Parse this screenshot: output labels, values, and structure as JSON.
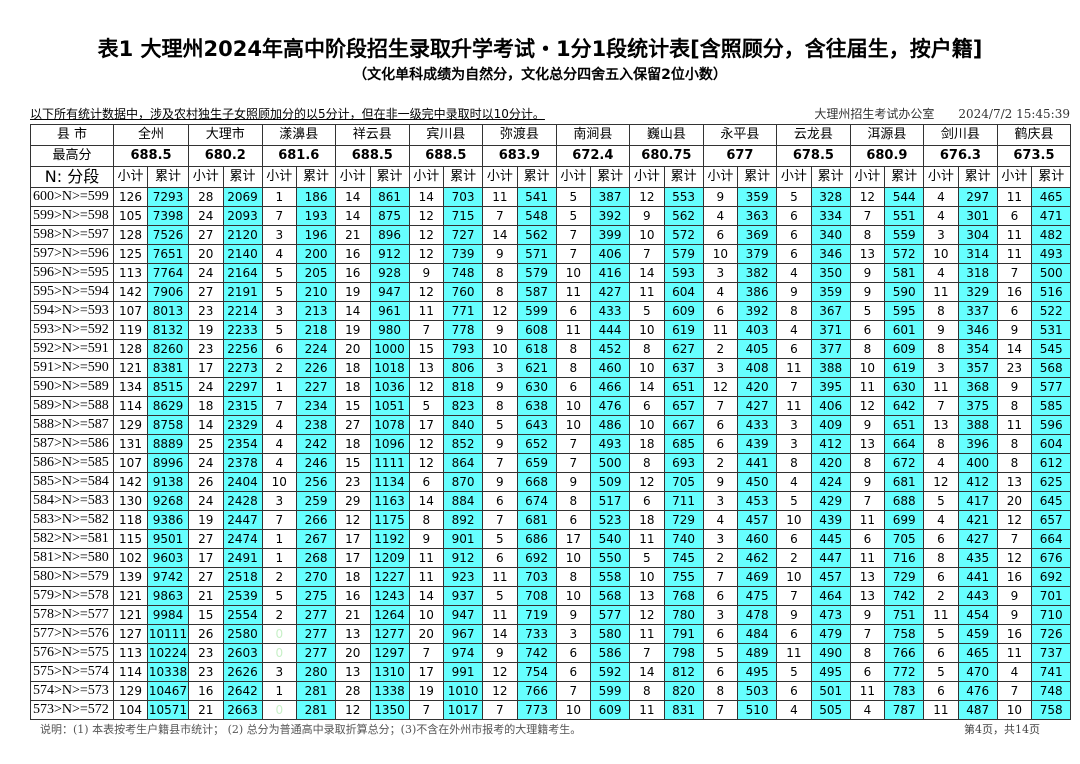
{
  "title": "表1  大理州2024年高中阶段招生录取升学考试・1分1段统计表[含照顾分，含往届生，按户籍]",
  "subtitle": "（文化单科成绩为自然分，文化总分四舍五入保留2位小数）",
  "note": "以下所有统计数据中，涉及农村独生子女照顾加分的以5分计，但在非一级完中录取时以10分计。",
  "office": "大理州招生考试办公室",
  "timestamp": "2024/7/2 15:45:39",
  "header": {
    "region_label": "县 市",
    "max_label": "最高分",
    "segment_label": "N: 分段",
    "sub_label": "小计",
    "cum_label": "累计"
  },
  "regions": [
    "全州",
    "大理市",
    "漾濞县",
    "祥云县",
    "宾川县",
    "弥渡县",
    "南涧县",
    "巍山县",
    "永平县",
    "云龙县",
    "洱源县",
    "剑川县",
    "鹤庆县"
  ],
  "max_scores": [
    "688.5",
    "680.2",
    "681.6",
    "688.5",
    "688.5",
    "683.9",
    "672.4",
    "680.75",
    "677",
    "678.5",
    "680.9",
    "676.3",
    "673.5"
  ],
  "rows": [
    [
      "600>N>=599",
      126,
      7293,
      28,
      2069,
      1,
      186,
      14,
      861,
      14,
      703,
      11,
      541,
      5,
      387,
      12,
      553,
      9,
      359,
      5,
      328,
      12,
      544,
      4,
      297,
      11,
      465
    ],
    [
      "599>N>=598",
      105,
      7398,
      24,
      2093,
      7,
      193,
      14,
      875,
      12,
      715,
      7,
      548,
      5,
      392,
      9,
      562,
      4,
      363,
      6,
      334,
      7,
      551,
      4,
      301,
      6,
      471
    ],
    [
      "598>N>=597",
      128,
      7526,
      27,
      2120,
      3,
      196,
      21,
      896,
      12,
      727,
      14,
      562,
      7,
      399,
      10,
      572,
      6,
      369,
      6,
      340,
      8,
      559,
      3,
      304,
      11,
      482
    ],
    [
      "597>N>=596",
      125,
      7651,
      20,
      2140,
      4,
      200,
      16,
      912,
      12,
      739,
      9,
      571,
      7,
      406,
      7,
      579,
      10,
      379,
      6,
      346,
      13,
      572,
      10,
      314,
      11,
      493
    ],
    [
      "596>N>=595",
      113,
      7764,
      24,
      2164,
      5,
      205,
      16,
      928,
      9,
      748,
      8,
      579,
      10,
      416,
      14,
      593,
      3,
      382,
      4,
      350,
      9,
      581,
      4,
      318,
      7,
      500
    ],
    [
      "595>N>=594",
      142,
      7906,
      27,
      2191,
      5,
      210,
      19,
      947,
      12,
      760,
      8,
      587,
      11,
      427,
      11,
      604,
      4,
      386,
      9,
      359,
      9,
      590,
      11,
      329,
      16,
      516
    ],
    [
      "594>N>=593",
      107,
      8013,
      23,
      2214,
      3,
      213,
      14,
      961,
      11,
      771,
      12,
      599,
      6,
      433,
      5,
      609,
      6,
      392,
      8,
      367,
      5,
      595,
      8,
      337,
      6,
      522
    ],
    [
      "593>N>=592",
      119,
      8132,
      19,
      2233,
      5,
      218,
      19,
      980,
      7,
      778,
      9,
      608,
      11,
      444,
      10,
      619,
      11,
      403,
      4,
      371,
      6,
      601,
      9,
      346,
      9,
      531
    ],
    [
      "592>N>=591",
      128,
      8260,
      23,
      2256,
      6,
      224,
      20,
      1000,
      15,
      793,
      10,
      618,
      8,
      452,
      8,
      627,
      2,
      405,
      6,
      377,
      8,
      609,
      8,
      354,
      14,
      545
    ],
    [
      "591>N>=590",
      121,
      8381,
      17,
      2273,
      2,
      226,
      18,
      1018,
      13,
      806,
      3,
      621,
      8,
      460,
      10,
      637,
      3,
      408,
      11,
      388,
      10,
      619,
      3,
      357,
      23,
      568
    ],
    [
      "590>N>=589",
      134,
      8515,
      24,
      2297,
      1,
      227,
      18,
      1036,
      12,
      818,
      9,
      630,
      6,
      466,
      14,
      651,
      12,
      420,
      7,
      395,
      11,
      630,
      11,
      368,
      9,
      577
    ],
    [
      "589>N>=588",
      114,
      8629,
      18,
      2315,
      7,
      234,
      15,
      1051,
      5,
      823,
      8,
      638,
      10,
      476,
      6,
      657,
      7,
      427,
      11,
      406,
      12,
      642,
      7,
      375,
      8,
      585
    ],
    [
      "588>N>=587",
      129,
      8758,
      14,
      2329,
      4,
      238,
      27,
      1078,
      17,
      840,
      5,
      643,
      10,
      486,
      10,
      667,
      6,
      433,
      3,
      409,
      9,
      651,
      13,
      388,
      11,
      596
    ],
    [
      "587>N>=586",
      131,
      8889,
      25,
      2354,
      4,
      242,
      18,
      1096,
      12,
      852,
      9,
      652,
      7,
      493,
      18,
      685,
      6,
      439,
      3,
      412,
      13,
      664,
      8,
      396,
      8,
      604
    ],
    [
      "586>N>=585",
      107,
      8996,
      24,
      2378,
      4,
      246,
      15,
      1111,
      12,
      864,
      7,
      659,
      7,
      500,
      8,
      693,
      2,
      441,
      8,
      420,
      8,
      672,
      4,
      400,
      8,
      612
    ],
    [
      "585>N>=584",
      142,
      9138,
      26,
      2404,
      10,
      256,
      23,
      1134,
      6,
      870,
      9,
      668,
      9,
      509,
      12,
      705,
      9,
      450,
      4,
      424,
      9,
      681,
      12,
      412,
      13,
      625
    ],
    [
      "584>N>=583",
      130,
      9268,
      24,
      2428,
      3,
      259,
      29,
      1163,
      14,
      884,
      6,
      674,
      8,
      517,
      6,
      711,
      3,
      453,
      5,
      429,
      7,
      688,
      5,
      417,
      20,
      645
    ],
    [
      "583>N>=582",
      118,
      9386,
      19,
      2447,
      7,
      266,
      12,
      1175,
      8,
      892,
      7,
      681,
      6,
      523,
      18,
      729,
      4,
      457,
      10,
      439,
      11,
      699,
      4,
      421,
      12,
      657
    ],
    [
      "582>N>=581",
      115,
      9501,
      27,
      2474,
      1,
      267,
      17,
      1192,
      9,
      901,
      5,
      686,
      17,
      540,
      11,
      740,
      3,
      460,
      6,
      445,
      6,
      705,
      6,
      427,
      7,
      664
    ],
    [
      "581>N>=580",
      102,
      9603,
      17,
      2491,
      1,
      268,
      17,
      1209,
      11,
      912,
      6,
      692,
      10,
      550,
      5,
      745,
      2,
      462,
      2,
      447,
      11,
      716,
      8,
      435,
      12,
      676
    ],
    [
      "580>N>=579",
      139,
      9742,
      27,
      2518,
      2,
      270,
      18,
      1227,
      11,
      923,
      11,
      703,
      8,
      558,
      10,
      755,
      7,
      469,
      10,
      457,
      13,
      729,
      6,
      441,
      16,
      692
    ],
    [
      "579>N>=578",
      121,
      9863,
      21,
      2539,
      5,
      275,
      16,
      1243,
      14,
      937,
      5,
      708,
      10,
      568,
      13,
      768,
      6,
      475,
      7,
      464,
      13,
      742,
      2,
      443,
      9,
      701
    ],
    [
      "578>N>=577",
      121,
      9984,
      15,
      2554,
      2,
      277,
      21,
      1264,
      10,
      947,
      11,
      719,
      9,
      577,
      12,
      780,
      3,
      478,
      9,
      473,
      9,
      751,
      11,
      454,
      9,
      710
    ],
    [
      "577>N>=576",
      127,
      10111,
      26,
      2580,
      0,
      277,
      13,
      1277,
      20,
      967,
      14,
      733,
      3,
      580,
      11,
      791,
      6,
      484,
      6,
      479,
      7,
      758,
      5,
      459,
      16,
      726
    ],
    [
      "576>N>=575",
      113,
      10224,
      23,
      2603,
      0,
      277,
      20,
      1297,
      7,
      974,
      9,
      742,
      6,
      586,
      7,
      798,
      5,
      489,
      11,
      490,
      8,
      766,
      6,
      465,
      11,
      737
    ],
    [
      "575>N>=574",
      114,
      10338,
      23,
      2626,
      3,
      280,
      13,
      1310,
      17,
      991,
      12,
      754,
      6,
      592,
      14,
      812,
      6,
      495,
      5,
      495,
      6,
      772,
      5,
      470,
      4,
      741
    ],
    [
      "574>N>=573",
      129,
      10467,
      16,
      2642,
      1,
      281,
      28,
      1338,
      19,
      1010,
      12,
      766,
      7,
      599,
      8,
      820,
      8,
      503,
      6,
      501,
      11,
      783,
      6,
      476,
      7,
      748
    ],
    [
      "573>N>=572",
      104,
      10571,
      21,
      2663,
      0,
      281,
      12,
      1350,
      7,
      1017,
      7,
      773,
      10,
      609,
      11,
      831,
      7,
      510,
      4,
      505,
      4,
      787,
      11,
      487,
      10,
      758
    ]
  ],
  "footer": "说明：(1) 本表按考生户籍县市统计；  (2) 总分为普通高中录取折算总分；(3)不含在外州市报考的大理籍考生。",
  "pagination": "第4页，共14页",
  "colors": {
    "cumulative_bg": "#66ffff",
    "zero_text": "#c8f0c8"
  }
}
